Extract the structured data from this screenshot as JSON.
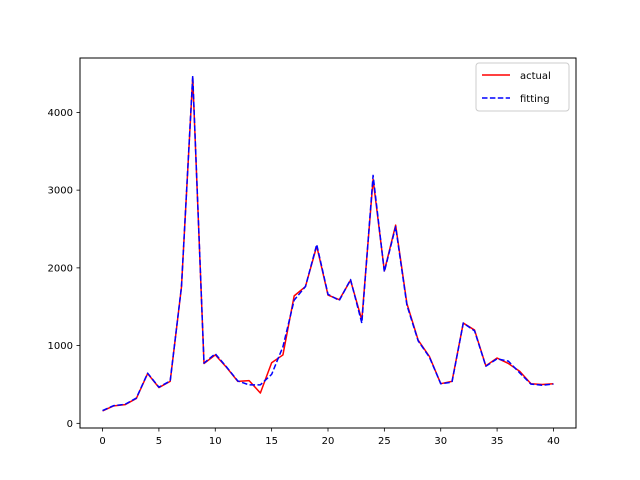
{
  "chart_data": {
    "type": "line",
    "title": "",
    "xlabel": "",
    "ylabel": "",
    "xlim": [
      -2,
      42
    ],
    "ylim": [
      -60,
      4700
    ],
    "grid": false,
    "legend_position": "top-right",
    "x_ticks": [
      0,
      5,
      10,
      15,
      20,
      25,
      30,
      35,
      40
    ],
    "y_ticks": [
      0,
      1000,
      2000,
      3000,
      4000
    ],
    "x": [
      0,
      1,
      2,
      3,
      4,
      5,
      6,
      7,
      8,
      9,
      10,
      11,
      12,
      13,
      14,
      15,
      16,
      17,
      18,
      19,
      20,
      21,
      22,
      23,
      24,
      25,
      26,
      27,
      28,
      29,
      30,
      31,
      32,
      33,
      34,
      35,
      36,
      37,
      38,
      39,
      40
    ],
    "series": [
      {
        "name": "actual",
        "color": "#ff0000",
        "style": "solid",
        "values": [
          160,
          225,
          240,
          320,
          640,
          460,
          540,
          1750,
          4450,
          770,
          880,
          720,
          540,
          550,
          390,
          780,
          880,
          1640,
          1760,
          2280,
          1650,
          1590,
          1840,
          1330,
          3140,
          1960,
          2550,
          1540,
          1070,
          860,
          510,
          540,
          1290,
          1200,
          740,
          840,
          770,
          670,
          510,
          500,
          510
        ]
      },
      {
        "name": "fitting",
        "color": "#0000ff",
        "style": "dashed",
        "values": [
          165,
          228,
          245,
          325,
          645,
          465,
          545,
          1755,
          4470,
          775,
          895,
          725,
          545,
          495,
          495,
          630,
          985,
          1585,
          1760,
          2300,
          1660,
          1580,
          1850,
          1290,
          3190,
          1950,
          2530,
          1520,
          1060,
          850,
          510,
          530,
          1290,
          1190,
          735,
          830,
          800,
          650,
          505,
          490,
          505
        ]
      }
    ]
  }
}
